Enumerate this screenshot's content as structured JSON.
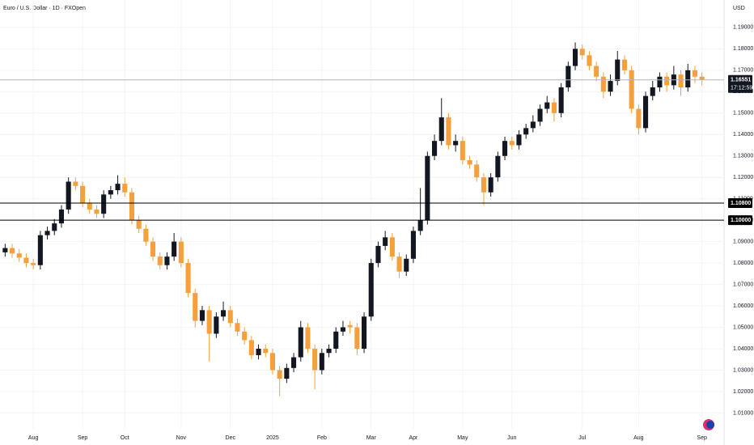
{
  "chart_data": {
    "type": "candlestick",
    "title": "Euro / U.S. Dollar · 1D · FXOpen",
    "currency": "USD",
    "up_color": "#131722",
    "down_color": "#f5a03c",
    "categories": [
      null,
      null,
      null,
      null,
      "Aug",
      null,
      null,
      null,
      null,
      null,
      null,
      "Sep",
      null,
      null,
      null,
      null,
      null,
      "Oct",
      null,
      null,
      null,
      null,
      null,
      null,
      null,
      "Nov",
      null,
      null,
      null,
      null,
      null,
      null,
      "Dec",
      null,
      null,
      null,
      null,
      null,
      "2025",
      null,
      null,
      null,
      null,
      null,
      null,
      "Feb",
      null,
      null,
      null,
      null,
      null,
      null,
      "Mar",
      null,
      null,
      null,
      null,
      null,
      "Apr",
      null,
      null,
      null,
      null,
      null,
      null,
      "May",
      null,
      null,
      null,
      null,
      null,
      null,
      "Jun",
      null,
      null,
      null,
      null,
      null,
      null,
      null,
      null,
      null,
      "Jul",
      null,
      null,
      null,
      null,
      null,
      null,
      null,
      "Aug",
      null,
      null,
      null,
      null,
      null,
      null,
      null,
      null,
      "Sep"
    ],
    "open": [
      1.085,
      1.087,
      1.0845,
      1.0825,
      1.08,
      1.079,
      1.093,
      1.095,
      1.0985,
      1.105,
      1.118,
      1.116,
      1.108,
      1.105,
      1.103,
      1.112,
      1.114,
      1.117,
      1.113,
      1.1,
      1.096,
      1.09,
      1.083,
      1.079,
      1.083,
      1.09,
      1.08,
      1.066,
      1.053,
      1.058,
      1.047,
      1.055,
      1.058,
      1.052,
      1.048,
      1.044,
      1.037,
      1.04,
      1.038,
      1.03,
      1.026,
      1.031,
      1.036,
      1.05,
      1.04,
      1.03,
      1.038,
      1.04,
      1.048,
      1.051,
      1.05,
      1.04,
      1.055,
      1.08,
      1.088,
      1.092,
      1.083,
      1.076,
      1.082,
      1.095,
      1.1,
      1.13,
      1.137,
      1.148,
      1.135,
      1.137,
      1.128,
      1.126,
      1.12,
      1.113,
      1.12,
      1.13,
      1.137,
      1.135,
      1.14,
      1.143,
      1.146,
      1.152,
      1.155,
      1.15,
      1.162,
      1.172,
      1.18,
      1.177,
      1.172,
      1.167,
      1.16,
      1.165,
      1.175,
      1.17,
      1.152,
      1.143,
      1.158,
      1.162,
      1.167,
      1.163,
      1.168,
      1.162,
      1.17,
      1.167
    ],
    "high": [
      1.089,
      1.089,
      1.0865,
      1.0845,
      1.082,
      1.095,
      1.097,
      1.1005,
      1.107,
      1.12,
      1.12,
      1.118,
      1.11,
      1.107,
      1.114,
      1.116,
      1.121,
      1.12,
      1.115,
      1.102,
      1.098,
      1.092,
      1.085,
      1.085,
      1.094,
      1.092,
      1.082,
      1.068,
      1.06,
      1.06,
      1.057,
      1.062,
      1.06,
      1.054,
      1.05,
      1.046,
      1.042,
      1.042,
      1.04,
      1.032,
      1.033,
      1.038,
      1.053,
      1.052,
      1.042,
      1.04,
      1.042,
      1.05,
      1.053,
      1.053,
      1.052,
      1.057,
      1.082,
      1.09,
      1.095,
      1.094,
      1.085,
      1.084,
      1.097,
      1.115,
      1.132,
      1.14,
      1.157,
      1.15,
      1.14,
      1.139,
      1.13,
      1.128,
      1.122,
      1.122,
      1.132,
      1.139,
      1.139,
      1.142,
      1.145,
      1.149,
      1.154,
      1.158,
      1.157,
      1.164,
      1.174,
      1.183,
      1.182,
      1.179,
      1.174,
      1.169,
      1.168,
      1.179,
      1.177,
      1.172,
      1.154,
      1.16,
      1.165,
      1.169,
      1.169,
      1.172,
      1.17,
      1.173,
      1.172,
      1.169
    ],
    "low": [
      1.083,
      1.0825,
      1.0805,
      1.078,
      1.077,
      1.077,
      1.091,
      1.093,
      1.0965,
      1.103,
      1.114,
      1.106,
      1.103,
      1.101,
      1.101,
      1.11,
      1.112,
      1.111,
      1.098,
      1.094,
      1.088,
      1.081,
      1.077,
      1.077,
      1.081,
      1.078,
      1.064,
      1.05,
      1.051,
      1.034,
      1.045,
      1.053,
      1.05,
      1.046,
      1.042,
      1.035,
      1.035,
      1.036,
      1.028,
      1.018,
      1.024,
      1.029,
      1.034,
      1.038,
      1.021,
      1.028,
      1.036,
      1.038,
      1.046,
      1.047,
      1.037,
      1.038,
      1.053,
      1.078,
      1.086,
      1.081,
      1.073,
      1.074,
      1.08,
      1.093,
      1.098,
      1.128,
      1.135,
      1.133,
      1.132,
      1.126,
      1.124,
      1.118,
      1.107,
      1.111,
      1.118,
      1.128,
      1.133,
      1.133,
      1.138,
      1.141,
      1.144,
      1.15,
      1.146,
      1.148,
      1.16,
      1.17,
      1.175,
      1.17,
      1.165,
      1.157,
      1.158,
      1.163,
      1.168,
      1.15,
      1.14,
      1.141,
      1.156,
      1.16,
      1.16,
      1.161,
      1.158,
      1.16,
      1.164,
      1.163
    ],
    "close": [
      1.087,
      1.0845,
      1.0825,
      1.08,
      1.079,
      1.093,
      1.095,
      1.0985,
      1.105,
      1.118,
      1.116,
      1.108,
      1.105,
      1.103,
      1.112,
      1.114,
      1.117,
      1.113,
      1.1,
      1.096,
      1.09,
      1.083,
      1.079,
      1.083,
      1.09,
      1.08,
      1.066,
      1.053,
      1.058,
      1.047,
      1.055,
      1.058,
      1.052,
      1.048,
      1.044,
      1.037,
      1.04,
      1.038,
      1.03,
      1.026,
      1.031,
      1.036,
      1.05,
      1.04,
      1.03,
      1.038,
      1.04,
      1.048,
      1.05,
      1.05,
      1.04,
      1.055,
      1.08,
      1.088,
      1.092,
      1.083,
      1.076,
      1.082,
      1.095,
      1.1,
      1.13,
      1.137,
      1.148,
      1.135,
      1.137,
      1.128,
      1.126,
      1.12,
      1.113,
      1.12,
      1.13,
      1.137,
      1.135,
      1.14,
      1.143,
      1.146,
      1.152,
      1.155,
      1.15,
      1.162,
      1.172,
      1.18,
      1.177,
      1.172,
      1.167,
      1.16,
      1.165,
      1.175,
      1.17,
      1.152,
      1.143,
      1.158,
      1.162,
      1.167,
      1.163,
      1.168,
      1.162,
      1.17,
      1.167,
      1.1655
    ],
    "ylim": [
      1.0026,
      1.2028
    ],
    "yticks": [
      {
        "value": 1.01,
        "label": "1.01000"
      },
      {
        "value": 1.02,
        "label": "1.02000"
      },
      {
        "value": 1.03,
        "label": "1.03000"
      },
      {
        "value": 1.04,
        "label": "1.04000"
      },
      {
        "value": 1.05,
        "label": "1.05000"
      },
      {
        "value": 1.06,
        "label": "1.06000"
      },
      {
        "value": 1.07,
        "label": "1.07000"
      },
      {
        "value": 1.08,
        "label": "1.08000"
      },
      {
        "value": 1.09,
        "label": "1.09000"
      },
      {
        "value": 1.1,
        "label": "1.10000"
      },
      {
        "value": 1.11,
        "label": "1.11000"
      },
      {
        "value": 1.12,
        "label": "1.12000"
      },
      {
        "value": 1.13,
        "label": "1.13000"
      },
      {
        "value": 1.14,
        "label": "1.14000"
      },
      {
        "value": 1.15,
        "label": "1.15000"
      },
      {
        "value": 1.16,
        "label": "1.16000"
      },
      {
        "value": 1.17,
        "label": "1.17000"
      },
      {
        "value": 1.18,
        "label": "1.18000"
      },
      {
        "value": 1.19,
        "label": "1.19000"
      }
    ],
    "grid": true,
    "levels": [
      {
        "value": 1.108,
        "label": "1.10800",
        "color": "#000000"
      },
      {
        "value": 1.1,
        "label": "1.10000",
        "color": "#000000"
      }
    ],
    "last_price": {
      "value": 1.16551,
      "label": "1.16551",
      "countdown": "17:12:59",
      "color": "#b2b5be"
    }
  }
}
